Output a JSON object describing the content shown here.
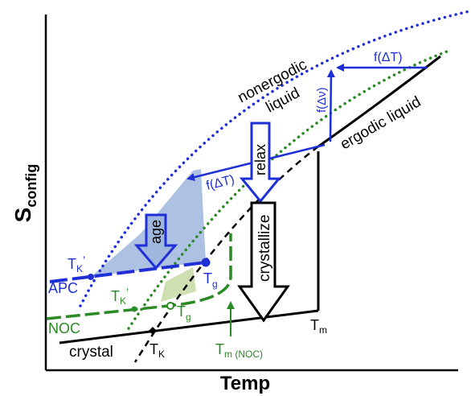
{
  "axes": {
    "y_label": "S",
    "y_label_sub": "config",
    "x_label": "Temp"
  },
  "curves": {
    "nonergodic_liquid": "nonergodic",
    "nonergodic_liquid_2": "liquid",
    "ergodic_liquid": "ergodic liquid",
    "crystal": "crystal",
    "apc": "APC",
    "noc": "NOC"
  },
  "annotations": {
    "f_delta_t_top": "f(ΔT)",
    "f_delta_nu": "f(Δν)",
    "f_delta_t_mid": "f(ΔT)",
    "relax": "relax",
    "age": "age",
    "crystallize": "crystallize"
  },
  "points": {
    "tk_prime_apc": "T",
    "tk_prime_apc_sub": "K",
    "tk_prime_apc_mark": "’",
    "tg_apc": "T",
    "tg_apc_sub": "g",
    "tk_prime_noc": "T",
    "tk_prime_noc_sub": "K",
    "tk_prime_noc_mark": "’",
    "tg_noc": "T",
    "tg_noc_sub": "g",
    "tk": "T",
    "tk_sub": "K",
    "tm": "T",
    "tm_sub": "m",
    "tm_noc": "T",
    "tm_noc_sub": "m (NOC)"
  },
  "colors": {
    "blue": "#1f2fd8",
    "green": "#2a8a23",
    "black": "#000000",
    "shade_blue": "#9fb6dd",
    "shade_green": "#c9dba8"
  }
}
